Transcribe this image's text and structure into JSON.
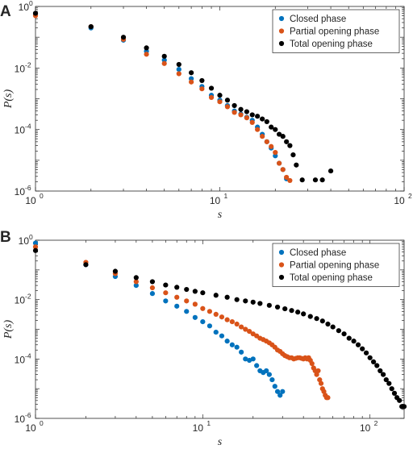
{
  "chart_data": [
    {
      "panel": "A",
      "type": "scatter",
      "xlabel": "s",
      "ylabel": "P(s)",
      "xscale": "log",
      "yscale": "log",
      "xlim": [
        1,
        100
      ],
      "ylim": [
        1e-06,
        1
      ],
      "x_ticks": [
        {
          "base": "10",
          "exp": "0"
        },
        {
          "base": "10",
          "exp": "1"
        },
        {
          "base": "10",
          "exp": "2"
        }
      ],
      "y_ticks": [
        {
          "base": "10",
          "exp": "-6"
        },
        {
          "base": "10",
          "exp": "-4"
        },
        {
          "base": "10",
          "exp": "-2"
        },
        {
          "base": "10",
          "exp": "0"
        }
      ],
      "legend_position": "top-right",
      "series": [
        {
          "name": "Closed phase",
          "color": "#0072BD",
          "x": [
            1,
            2,
            3,
            4,
            5,
            6,
            7,
            8,
            9,
            10,
            11,
            12,
            13,
            14,
            15,
            16,
            17,
            18,
            19,
            20,
            21,
            22,
            23
          ],
          "y": [
            0.55,
            0.2,
            0.08,
            0.035,
            0.018,
            0.009,
            0.0045,
            0.0025,
            0.0013,
            0.0009,
            0.0006,
            0.0004,
            0.00032,
            0.00025,
            0.0002,
            0.00012,
            7e-05,
            4e-05,
            2.5e-05,
            1.4e-05,
            8e-06,
            5e-06,
            2.5e-06
          ]
        },
        {
          "name": "Partial opening phase",
          "color": "#D95319",
          "x": [
            1,
            2,
            3,
            4,
            5,
            6,
            7,
            8,
            9,
            10,
            11,
            12,
            13,
            14,
            15,
            16,
            17,
            18,
            19,
            20,
            21,
            22,
            23,
            24
          ],
          "y": [
            0.5,
            0.22,
            0.085,
            0.028,
            0.014,
            0.0065,
            0.0035,
            0.0021,
            0.0011,
            0.0008,
            0.00055,
            0.00036,
            0.0003,
            0.00024,
            0.00017,
            0.0001,
            6e-05,
            4e-05,
            2.8e-05,
            1.8e-05,
            8e-06,
            5e-06,
            2.8e-06,
            2.2e-06
          ]
        },
        {
          "name": "Total opening phase",
          "color": "#000000",
          "x": [
            1,
            2,
            3,
            4,
            5,
            6,
            7,
            8,
            9,
            10,
            11,
            12,
            13,
            14,
            15,
            16,
            17,
            18,
            19,
            20,
            21,
            22,
            23,
            24,
            25,
            26,
            28,
            33,
            36,
            40
          ],
          "y": [
            0.6,
            0.22,
            0.1,
            0.045,
            0.024,
            0.013,
            0.007,
            0.0039,
            0.0022,
            0.0013,
            0.0009,
            0.0006,
            0.00045,
            0.00038,
            0.0003,
            0.00027,
            0.00022,
            0.00018,
            0.00012,
            0.0001,
            7e-05,
            6e-05,
            4e-05,
            3e-05,
            1.5e-05,
            7e-06,
            2.3e-06,
            2.3e-06,
            2.3e-06,
            4.5e-06
          ]
        }
      ]
    },
    {
      "panel": "B",
      "type": "scatter",
      "xlabel": "s",
      "ylabel": "P(s)",
      "xscale": "log",
      "yscale": "log",
      "xlim": [
        1,
        160
      ],
      "ylim": [
        1e-06,
        1
      ],
      "x_ticks": [
        {
          "base": "10",
          "exp": "0"
        },
        {
          "base": "10",
          "exp": "1"
        },
        {
          "base": "10",
          "exp": "2"
        }
      ],
      "y_ticks": [
        {
          "base": "10",
          "exp": "-6"
        },
        {
          "base": "10",
          "exp": "-4"
        },
        {
          "base": "10",
          "exp": "-2"
        },
        {
          "base": "10",
          "exp": "0"
        }
      ],
      "legend_position": "top-right",
      "series": [
        {
          "name": "Closed phase",
          "color": "#0072BD",
          "x": [
            1,
            2,
            3,
            4,
            5,
            6,
            7,
            8,
            9,
            10,
            11,
            12,
            13,
            14,
            15,
            16,
            17,
            18,
            19,
            20,
            21,
            22,
            23,
            24,
            25,
            26,
            27,
            28,
            29,
            30
          ],
          "y": [
            0.8,
            0.15,
            0.06,
            0.03,
            0.016,
            0.009,
            0.006,
            0.004,
            0.0025,
            0.0018,
            0.0013,
            0.0008,
            0.0006,
            0.0004,
            0.0003,
            0.00025,
            0.00017,
            0.0001,
            9e-05,
            0.0001,
            6e-05,
            4e-05,
            3.5e-05,
            4e-05,
            3e-05,
            2e-05,
            1.2e-05,
            8e-06,
            6e-06,
            8e-06
          ]
        },
        {
          "name": "Partial opening phase",
          "color": "#D95319",
          "x": [
            1,
            2,
            3,
            4,
            5,
            6,
            7,
            8,
            9,
            10,
            11,
            12,
            13,
            14,
            15,
            16,
            17,
            18,
            19,
            20,
            21,
            22,
            23,
            24,
            25,
            26,
            27,
            28,
            29,
            30,
            31,
            32,
            33,
            34,
            35,
            36,
            37,
            38,
            39,
            40,
            41,
            42,
            43,
            44,
            45,
            46,
            47,
            48,
            49,
            50,
            51,
            52,
            53,
            54,
            55,
            56
          ],
          "y": [
            0.6,
            0.18,
            0.075,
            0.04,
            0.025,
            0.017,
            0.012,
            0.009,
            0.007,
            0.005,
            0.004,
            0.0032,
            0.0026,
            0.0021,
            0.0018,
            0.0015,
            0.0012,
            0.001,
            0.00085,
            0.0007,
            0.0006,
            0.0005,
            0.00045,
            0.0004,
            0.00035,
            0.0003,
            0.00025,
            0.0002,
            0.00018,
            0.00015,
            0.00013,
            0.00012,
            0.00011,
            0.00011,
            0.0001,
            0.000105,
            0.00011,
            0.00011,
            0.000105,
            0.0001,
            0.00011,
            0.0001,
            0.00011,
            9e-05,
            7e-05,
            5e-05,
            4e-05,
            3e-05,
            4e-05,
            2e-05,
            1.5e-05,
            1e-05,
            8e-06,
            6e-06,
            5e-06,
            5e-06
          ]
        },
        {
          "name": "Total opening phase",
          "color": "#000000",
          "x": [
            1,
            2,
            3,
            4,
            5,
            6,
            7,
            8,
            9,
            10,
            12,
            14,
            16,
            18,
            20,
            22,
            25,
            28,
            31,
            34,
            37,
            40,
            44,
            48,
            52,
            56,
            60,
            65,
            70,
            75,
            80,
            85,
            90,
            95,
            100,
            105,
            110,
            115,
            120,
            125,
            130,
            135,
            140,
            145,
            150,
            155,
            160
          ],
          "y": [
            0.45,
            0.15,
            0.09,
            0.055,
            0.04,
            0.031,
            0.026,
            0.022,
            0.019,
            0.017,
            0.014,
            0.012,
            0.01,
            0.009,
            0.0082,
            0.0074,
            0.0064,
            0.0056,
            0.0049,
            0.0043,
            0.0038,
            0.0033,
            0.0027,
            0.0023,
            0.0019,
            0.0015,
            0.0012,
            0.0009,
            0.0007,
            0.0005,
            0.0004,
            0.0003,
            0.00022,
            0.00016,
            0.00011,
            8e-05,
            6e-05,
            4e-05,
            3e-05,
            2e-05,
            1.5e-05,
            1e-05,
            7e-06,
            5e-06,
            4e-06,
            2.5e-06,
            2.5e-06
          ]
        }
      ]
    }
  ],
  "figure": {
    "panels": [
      {
        "letter": "A"
      },
      {
        "letter": "B"
      }
    ]
  }
}
